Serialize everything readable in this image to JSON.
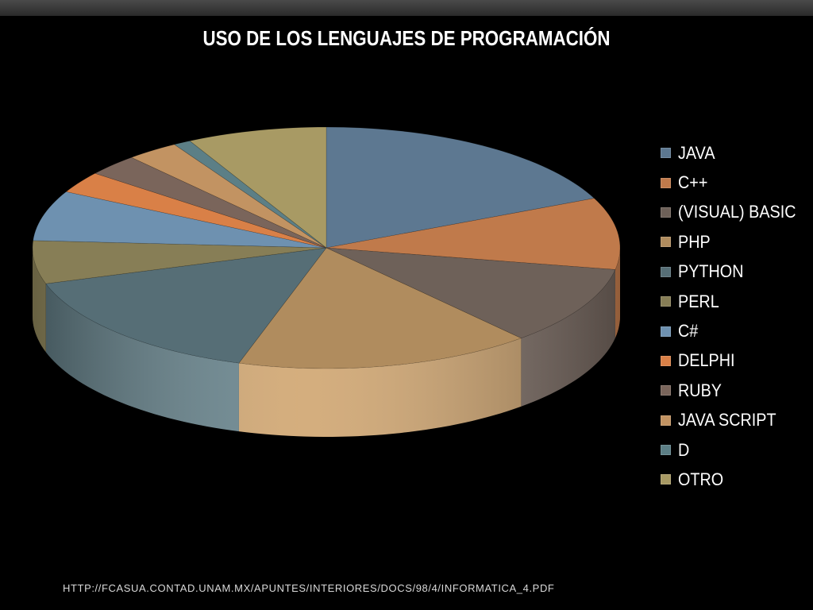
{
  "slide": {
    "title": "USO DE LOS LENGUAJES DE PROGRAMACIÓN",
    "source": "HTTP://FCASUA.CONTAD.UNAM.MX/APUNTES/INTERIORES/DOCS/98/4/INFORMATICA_4.PDF"
  },
  "chart_data": {
    "type": "pie",
    "title": "USO DE LOS LENGUAJES DE PROGRAMACIÓN",
    "three_d": true,
    "legend_position": "right",
    "categories": [
      "JAVA",
      "C++",
      "(VISUAL) BASIC",
      "PHP",
      "PYTHON",
      "PERL",
      "C#",
      "DELPHI",
      "RUBY",
      "JAVA SCRIPT",
      "D",
      "OTRO"
    ],
    "values": [
      19.0,
      10.0,
      11.0,
      17.0,
      16.0,
      6.0,
      7.0,
      3.0,
      3.0,
      3.0,
      1.0,
      8.0
    ],
    "unit": "%",
    "colors": [
      "#5d7891",
      "#c07a4b",
      "#6e6159",
      "#b08c5e",
      "#566e76",
      "#877e56",
      "#6e91b0",
      "#d98047",
      "#7a655b",
      "#c29362",
      "#5c7f86",
      "#a89a64"
    ],
    "legend": [
      {
        "label": "JAVA"
      },
      {
        "label": "C++"
      },
      {
        "label": "(VISUAL) BASIC"
      },
      {
        "label": "PHP"
      },
      {
        "label": "PYTHON"
      },
      {
        "label": "PERL"
      },
      {
        "label": "C#"
      },
      {
        "label": "DELPHI"
      },
      {
        "label": "RUBY"
      },
      {
        "label": "JAVA SCRIPT"
      },
      {
        "label": "D"
      },
      {
        "label": "OTRO"
      }
    ]
  }
}
